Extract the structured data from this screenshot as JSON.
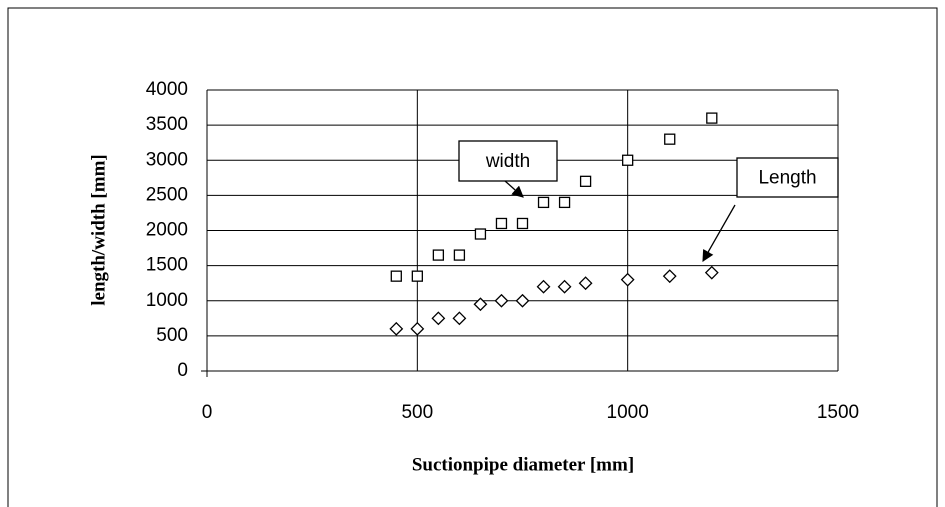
{
  "chart_data": {
    "type": "scatter",
    "xlabel": "Suctionpipe diameter [mm]",
    "ylabel": "length/width [mm]",
    "xlim": [
      0,
      1500
    ],
    "xticks": [
      0,
      500,
      1000,
      1500
    ],
    "ylim": [
      0,
      4000
    ],
    "yticks": [
      0,
      500,
      1000,
      1500,
      2000,
      2500,
      3000,
      3500,
      4000
    ],
    "grid": true,
    "series": [
      {
        "name": "width",
        "color": "#000000",
        "marker": "square",
        "x": [
          450,
          500,
          550,
          600,
          650,
          700,
          750,
          800,
          850,
          900,
          1000,
          1100,
          1200
        ],
        "values": [
          1350,
          1350,
          1650,
          1650,
          1950,
          2100,
          2100,
          2400,
          2400,
          2700,
          3000,
          3300,
          3600
        ]
      },
      {
        "name": "Length",
        "color": "#000000",
        "marker": "diamond",
        "x": [
          450,
          500,
          550,
          600,
          650,
          700,
          750,
          800,
          850,
          900,
          1000,
          1100,
          1200
        ],
        "values": [
          600,
          600,
          750,
          750,
          950,
          1000,
          1000,
          1200,
          1200,
          1250,
          1300,
          1350,
          1400
        ]
      }
    ]
  }
}
